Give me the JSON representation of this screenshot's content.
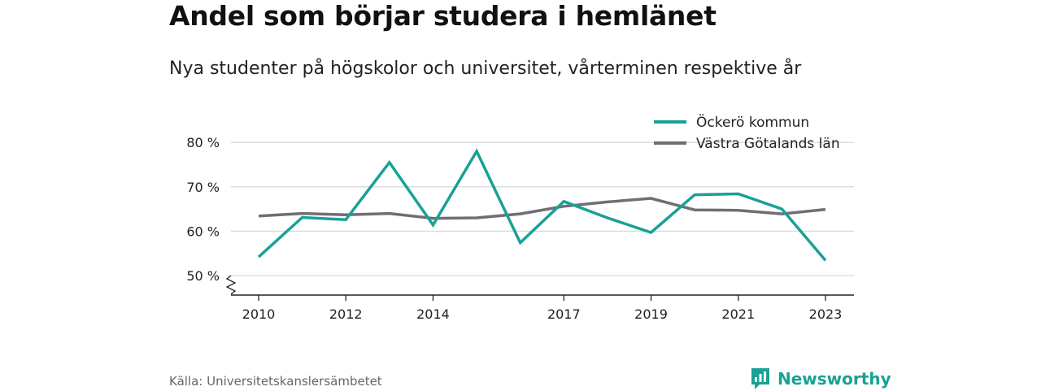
{
  "header": {
    "title": "Andel som börjar studera i hemlänet",
    "subtitle": "Nya studenter på högskolor och universitet, vårterminen respektive år"
  },
  "footer": {
    "source": "Källa: Universitetskanslersämbetet",
    "brand": "Newsworthy"
  },
  "colors": {
    "ockero": "#1aa195",
    "vastra": "#6f6e74",
    "grid": "#d9d9d9",
    "brand": "#1aa195"
  },
  "chart_data": {
    "type": "line",
    "x": [
      2010,
      2011,
      2012,
      2013,
      2014,
      2015,
      2016,
      2017,
      2018,
      2019,
      2020,
      2021,
      2022,
      2023
    ],
    "x_tick_labels": [
      "2010",
      "2012",
      "2014",
      "2017",
      "2019",
      "2021",
      "2023"
    ],
    "y_tick_labels": [
      "50 %",
      "60 %",
      "70 %",
      "80 %"
    ],
    "y_ticks": [
      50,
      60,
      70,
      80
    ],
    "ylim": [
      45.5,
      82
    ],
    "y_axis_break": true,
    "grid": true,
    "legend_position": "top-right",
    "series": [
      {
        "name": "Öckerö kommun",
        "values": [
          54.2,
          63.1,
          62.6,
          75.5,
          61.4,
          78.0,
          57.4,
          66.7,
          63.0,
          59.7,
          68.2,
          68.4,
          65.0,
          53.4
        ]
      },
      {
        "name": "Västra Götalands län",
        "values": [
          63.4,
          64.0,
          63.7,
          64.0,
          62.9,
          63.0,
          63.9,
          65.6,
          66.6,
          67.4,
          64.8,
          64.7,
          63.9,
          64.9
        ]
      }
    ]
  }
}
